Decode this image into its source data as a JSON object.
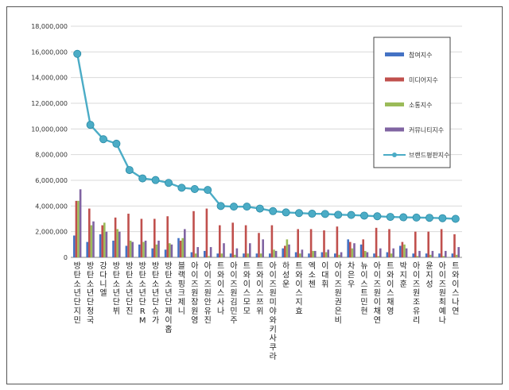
{
  "chart_data": {
    "type": "bar",
    "title": "",
    "xlabel": "",
    "ylabel": "",
    "ylim": [
      0,
      18000000
    ],
    "yticks": [
      "0",
      "2,000,000",
      "4,000,000",
      "6,000,000",
      "8,000,000",
      "10,000,000",
      "12,000,000",
      "14,000,000",
      "16,000,000",
      "18,000,000"
    ],
    "grid": true,
    "legend_position": "top-right",
    "categories": [
      "방탄소년단 지민",
      "방탄소년단 정국",
      "강다니엘",
      "방탄소년단 뷔",
      "방탄소년단 진",
      "방탄소년단 RM",
      "방탄소년단 슈가",
      "방탄소년단 제이홉",
      "블랙핑크 제니",
      "아이즈원 장원영",
      "아이즈원 안유진",
      "트와이스 사나",
      "아이즈원 김민주",
      "트와이스 모모",
      "트와이스 쯔위",
      "아이즈원 미야와키 사쿠라",
      "하성운",
      "트와이스 지효",
      "엑소 첸",
      "이대휘",
      "아이즈원 권은비",
      "차은우",
      "뉴이스트 민현",
      "아이즈원 이채연",
      "트와이스 채영",
      "박지훈",
      "아이즈원 조유리",
      "윤지성",
      "아이즈원 최예나",
      "트와이스 나연"
    ],
    "series": [
      {
        "name": "참여지수",
        "type": "bar",
        "color": "#4472C4",
        "values": [
          1700000,
          1200000,
          1800000,
          1300000,
          900000,
          1000000,
          700000,
          600000,
          1500000,
          400000,
          500000,
          300000,
          300000,
          300000,
          300000,
          300000,
          700000,
          400000,
          300000,
          400000,
          300000,
          1400000,
          1000000,
          300000,
          400000,
          900000,
          300000,
          300000,
          300000,
          300000
        ]
      },
      {
        "name": "미디어지수",
        "type": "bar",
        "color": "#C0504D",
        "values": [
          4400000,
          3800000,
          2500000,
          3100000,
          3400000,
          3000000,
          3000000,
          3200000,
          1300000,
          3600000,
          3800000,
          2500000,
          2700000,
          2500000,
          1900000,
          2500000,
          900000,
          2200000,
          2200000,
          2100000,
          2400000,
          1200000,
          1400000,
          2300000,
          2200000,
          1200000,
          2000000,
          2000000,
          2200000,
          1800000
        ]
      },
      {
        "name": "소통지수",
        "type": "bar",
        "color": "#9BBB59",
        "values": [
          4400000,
          2500000,
          2700000,
          2200000,
          1300000,
          1200000,
          1000000,
          1100000,
          1500000,
          300000,
          100000,
          300000,
          200000,
          300000,
          300000,
          600000,
          1400000,
          300000,
          500000,
          400000,
          200000,
          700000,
          500000,
          100000,
          300000,
          1000000,
          100000,
          200000,
          100000,
          200000
        ]
      },
      {
        "name": "커뮤니티지수",
        "type": "bar",
        "color": "#8064A2",
        "values": [
          5300000,
          2800000,
          2000000,
          2000000,
          1200000,
          1300000,
          1300000,
          1000000,
          2200000,
          800000,
          800000,
          1100000,
          700000,
          1100000,
          1400000,
          500000,
          1000000,
          600000,
          500000,
          600000,
          400000,
          1100000,
          400000,
          700000,
          700000,
          700000,
          500000,
          500000,
          500000,
          800000
        ]
      },
      {
        "name": "브랜드평판지수",
        "type": "line",
        "color": "#4BACC6",
        "values": [
          15850000,
          10320000,
          9200000,
          8850000,
          6800000,
          6150000,
          6020000,
          5800000,
          5420000,
          5320000,
          5250000,
          4000000,
          3950000,
          3950000,
          3800000,
          3600000,
          3500000,
          3450000,
          3400000,
          3380000,
          3320000,
          3300000,
          3250000,
          3200000,
          3150000,
          3120000,
          3100000,
          3080000,
          3050000,
          3000000
        ]
      }
    ]
  }
}
